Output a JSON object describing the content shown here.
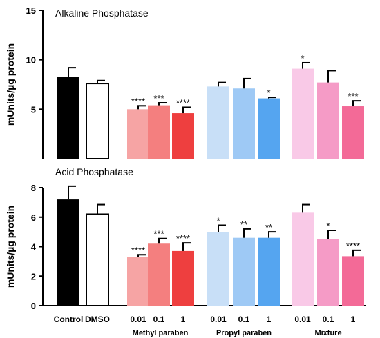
{
  "chart_data": [
    {
      "type": "bar",
      "title": "Alkaline Phosphatase",
      "ylabel": "mUnits/µg protein",
      "ylim": [
        0,
        15
      ],
      "yticks": [
        "5",
        "10",
        "15"
      ],
      "categories": [
        "Control",
        "DMSO",
        "0.01",
        "0.1",
        "1",
        "0.01",
        "0.1",
        "1",
        "0.01",
        "0.1",
        "1"
      ],
      "groups": [
        "",
        "",
        "Methyl paraben",
        "Methyl paraben",
        "Methyl paraben",
        "Propyl paraben",
        "Propyl paraben",
        "Propyl paraben",
        "Mixture",
        "Mixture",
        "Mixture"
      ],
      "values": [
        8.3,
        7.6,
        5.0,
        5.4,
        4.6,
        7.3,
        7.1,
        6.1,
        9.1,
        7.7,
        5.3
      ],
      "errors": [
        0.9,
        0.3,
        0.35,
        0.25,
        0.6,
        0.4,
        1.0,
        0.1,
        0.6,
        1.2,
        0.55
      ],
      "significance": [
        "",
        "",
        "****",
        "***",
        "****",
        "",
        "",
        "*",
        "*",
        "",
        "***"
      ],
      "colors": [
        "#000000",
        "#ffffff",
        "#f6a4a4",
        "#f47f7f",
        "#ee3f3f",
        "#c8dff7",
        "#9ec9f5",
        "#55a5f0",
        "#f9c9e7",
        "#f59bc6",
        "#f36a97"
      ]
    },
    {
      "type": "bar",
      "title": "Acid Phosphatase",
      "ylabel": "mUnits/µg protein",
      "ylim": [
        0,
        8
      ],
      "yticks": [
        "0",
        "2",
        "4",
        "6",
        "8"
      ],
      "categories": [
        "Control",
        "DMSO",
        "0.01",
        "0.1",
        "1",
        "0.01",
        "0.1",
        "1",
        "0.01",
        "0.1",
        "1"
      ],
      "groups": [
        "",
        "",
        "Methyl paraben",
        "Methyl paraben",
        "Methyl paraben",
        "Propyl paraben",
        "Propyl paraben",
        "Propyl paraben",
        "Mixture",
        "Mixture",
        "Mixture"
      ],
      "values": [
        7.2,
        6.2,
        3.3,
        4.2,
        3.7,
        5.0,
        4.6,
        4.6,
        6.3,
        4.5,
        3.35
      ],
      "errors": [
        0.9,
        0.65,
        0.15,
        0.35,
        0.55,
        0.45,
        0.6,
        0.4,
        0.55,
        0.6,
        0.4
      ],
      "significance": [
        "",
        "",
        "****",
        "***",
        "****",
        "*",
        "**",
        "**",
        "",
        "*",
        "****"
      ],
      "colors": [
        "#000000",
        "#ffffff",
        "#f6a4a4",
        "#f47f7f",
        "#ee3f3f",
        "#c8dff7",
        "#9ec9f5",
        "#55a5f0",
        "#f9c9e7",
        "#f59bc6",
        "#f36a97"
      ]
    }
  ],
  "x_axis": {
    "category_labels": [
      "Control",
      "DMSO",
      "0.01",
      "0.1",
      "1",
      "0.01",
      "0.1",
      "1",
      "0.01",
      "0.1",
      "1"
    ],
    "group_labels": [
      "Methyl paraben",
      "Propyl paraben",
      "Mixture"
    ]
  }
}
